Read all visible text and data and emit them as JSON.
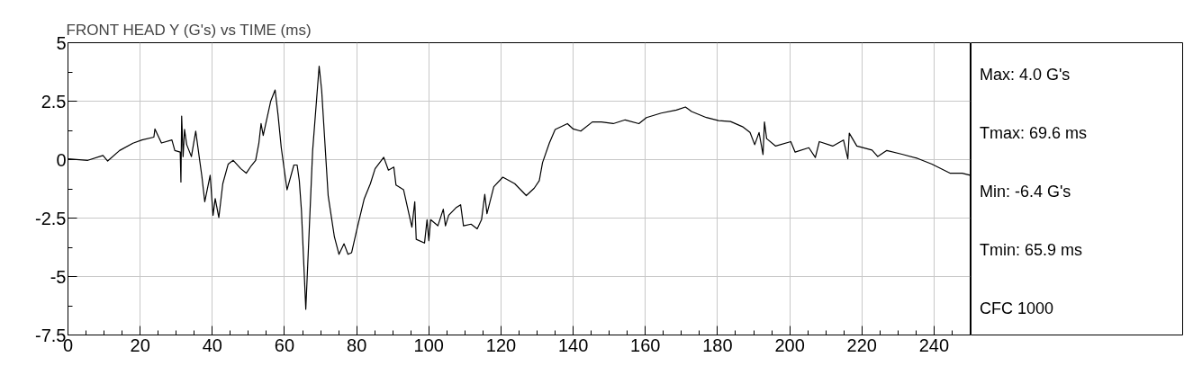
{
  "chart_data": {
    "type": "line",
    "title": "FRONT HEAD Y (G's) vs TIME (ms)",
    "x": [
      0,
      5.5,
      9.7,
      11,
      14.3,
      18,
      20.5,
      23.8,
      24.1,
      25.9,
      28.8,
      29.6,
      31.1,
      31.3,
      31.5,
      31.9,
      32.3,
      32.9,
      34.2,
      35.4,
      36.3,
      37.1,
      37.9,
      39.4,
      40.2,
      40.8,
      41.8,
      42.9,
      44.4,
      45.8,
      47.9,
      49.4,
      50.8,
      52,
      52.9,
      53.5,
      54.1,
      56.2,
      57.4,
      58.2,
      59.1,
      60.7,
      62.6,
      63.5,
      64.1,
      64.7,
      65.9,
      67.8,
      69.6,
      70.3,
      72.1,
      73.8,
      75.1,
      76.5,
      77.6,
      78.6,
      80.1,
      82.1,
      83.8,
      85.1,
      87.5,
      88.8,
      90.3,
      90.9,
      93,
      95.3,
      96.1,
      96.5,
      98.8,
      99.5,
      100,
      100.5,
      102.5,
      104,
      104.6,
      105.5,
      107.5,
      108.8,
      109.6,
      111.7,
      113.4,
      114.6,
      115.5,
      116.1,
      118,
      120.5,
      123.8,
      127,
      129.2,
      130.6,
      131.5,
      133.4,
      135,
      138.4,
      140,
      142.1,
      145.3,
      147.8,
      151.1,
      154.4,
      158.2,
      160.3,
      164.4,
      168.6,
      171.1,
      172.8,
      176.9,
      180.3,
      183.6,
      186.9,
      189,
      190.3,
      191.5,
      192.6,
      193,
      193.6,
      196.1,
      200.3,
      201.5,
      205.3,
      207.1,
      208.2,
      211.9,
      214.9,
      216.1,
      216.5,
      218.6,
      222.8,
      224.4,
      226.9,
      231.1,
      235.3,
      239.4,
      244.4,
      247.8,
      250
    ],
    "series": [
      {
        "color": "#000000",
        "values": [
          0.03,
          -0.03,
          0.18,
          -0.06,
          0.39,
          0.7,
          0.84,
          0.96,
          1.31,
          0.71,
          0.84,
          0.39,
          0.32,
          -0.96,
          1.86,
          0.13,
          1.29,
          0.64,
          0.13,
          1.22,
          0.19,
          -0.71,
          -1.8,
          -0.67,
          -2.38,
          -1.67,
          -2.48,
          -1.03,
          -0.19,
          -0.03,
          -0.39,
          -0.58,
          -0.26,
          -0.03,
          0.71,
          1.54,
          1.03,
          2.51,
          2.98,
          1.93,
          0.51,
          -1.29,
          -0.23,
          -0.23,
          -0.9,
          -2.19,
          -6.4,
          0.39,
          4.0,
          2.96,
          -1.54,
          -3.28,
          -4.05,
          -3.6,
          -4.05,
          -3.98,
          -2.96,
          -1.67,
          -1.03,
          -0.39,
          0.1,
          -0.45,
          -0.32,
          -1.09,
          -1.29,
          -2.89,
          -1.8,
          -3.41,
          -3.57,
          -2.57,
          -3.47,
          -2.57,
          -2.83,
          -2.12,
          -2.83,
          -2.38,
          -2.06,
          -1.93,
          -2.83,
          -2.76,
          -2.96,
          -2.57,
          -1.48,
          -2.31,
          -1.16,
          -0.75,
          -1.03,
          -1.54,
          -1.22,
          -0.9,
          -0.13,
          0.71,
          1.29,
          1.54,
          1.31,
          1.22,
          1.61,
          1.61,
          1.54,
          1.7,
          1.54,
          1.8,
          1.99,
          2.12,
          2.25,
          2.06,
          1.8,
          1.67,
          1.63,
          1.41,
          1.16,
          0.64,
          1.16,
          0.22,
          1.61,
          0.9,
          0.58,
          0.77,
          0.32,
          0.51,
          0.09,
          0.77,
          0.58,
          0.84,
          0.03,
          1.13,
          0.58,
          0.41,
          0.13,
          0.39,
          0.23,
          0.06,
          -0.19,
          -0.58,
          -0.58,
          -0.67
        ]
      }
    ],
    "xlim": [
      0,
      250
    ],
    "ylim": [
      -7.5,
      5
    ],
    "xticks": [
      0,
      20,
      40,
      60,
      80,
      100,
      120,
      140,
      160,
      180,
      200,
      220,
      240
    ],
    "yticks": [
      5,
      {
        "value": 2.5,
        "label": "2.5"
      },
      0,
      {
        "value": -2.5,
        "label": "-2.5"
      },
      -5,
      {
        "value": -7.5,
        "label": "-7.5"
      }
    ],
    "grid": true,
    "line_style": "solid",
    "annotations": [
      "Max: 4.0 G's",
      "Tmax: 69.6 ms",
      "Min: -6.4 G's",
      "Tmin: 65.9 ms",
      "CFC 1000"
    ]
  }
}
